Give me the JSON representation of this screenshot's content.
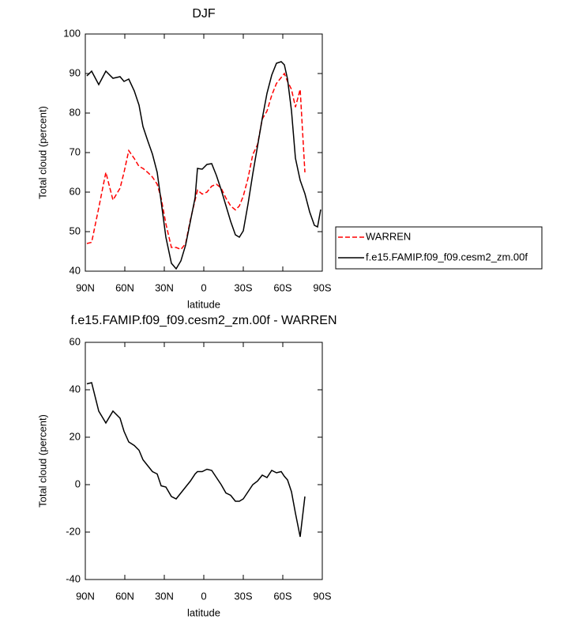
{
  "chart_data": [
    {
      "type": "line",
      "title": "DJF",
      "xlabel": "latitude",
      "ylabel": "Total cloud (percent)",
      "x": [
        88.8,
        85.2,
        79.8,
        74.4,
        69,
        63.6,
        60.6,
        57,
        52.8,
        49.2,
        46.2,
        42.6,
        39,
        35.4,
        32.4,
        28.8,
        24.6,
        21,
        17.4,
        13.8,
        10.2,
        6.6,
        4.8,
        1.2,
        -2.4,
        -6,
        -9.6,
        -13.2,
        -16.8,
        -20.4,
        -24,
        -27,
        -30,
        -33.6,
        -37.2,
        -40.8,
        -44.4,
        -48,
        -51.6,
        -55.2,
        -58.8,
        -61.2,
        -63.6,
        -66.6,
        -69.6,
        -73.2,
        -76.8,
        -80.4,
        -84,
        -86.4,
        -88.8
      ],
      "xlim": [
        90,
        -90
      ],
      "xticks": [
        {
          "value": 90,
          "label": "90N"
        },
        {
          "value": 60,
          "label": "60N"
        },
        {
          "value": 30,
          "label": "30N"
        },
        0,
        {
          "value": -30,
          "label": "30S"
        },
        {
          "value": -60,
          "label": "60S"
        },
        {
          "value": -90,
          "label": "90S"
        }
      ],
      "ylim": [
        40,
        100
      ],
      "yticks": [
        40,
        50,
        60,
        70,
        80,
        90,
        100
      ],
      "legend": "right",
      "series": [
        {
          "name": "WARREN",
          "color": "#ff0000",
          "dash": true,
          "values": [
            47.0,
            47.3,
            56,
            65,
            58,
            61,
            65,
            70.5,
            68.5,
            66.5,
            66,
            65,
            63.8,
            62,
            58.5,
            52,
            46,
            46,
            45.5,
            47,
            53,
            58,
            60.5,
            59.5,
            60,
            61.5,
            62,
            61,
            58.5,
            56.5,
            55.5,
            56.5,
            59,
            63.5,
            69.5,
            72,
            78.5,
            80.5,
            84.5,
            87.5,
            89,
            90,
            88,
            86,
            81.5,
            86,
            65,
            null,
            null,
            null,
            null
          ]
        },
        {
          "name": "f.e15.FAMIP.f09_f09.cesm2_zm.00f",
          "color": "#000000",
          "dash": false,
          "values": [
            89.4,
            90.6,
            87.2,
            90.6,
            88.8,
            89.2,
            88,
            88.6,
            85.6,
            82,
            76.6,
            73,
            69.6,
            65,
            57.6,
            48.6,
            42,
            40.6,
            42.6,
            46.6,
            52.6,
            58.6,
            66,
            65.8,
            67,
            67.2,
            64.2,
            60.6,
            56.6,
            52.6,
            49.2,
            48.6,
            50.2,
            57,
            64.6,
            71.6,
            78.6,
            85,
            89.6,
            92.6,
            93,
            92.2,
            88.6,
            80.6,
            68.6,
            63,
            59.6,
            55,
            51.6,
            51.2,
            55.6
          ]
        }
      ]
    },
    {
      "type": "line",
      "title": "f.e15.FAMIP.f09_f09.cesm2_zm.00f - WARREN",
      "xlabel": "latitude",
      "ylabel": "Total cloud (percent)",
      "x": [
        88.8,
        85.2,
        79.8,
        74.4,
        69,
        63.6,
        60.6,
        57,
        52.8,
        49.2,
        46.2,
        42.6,
        39,
        35.4,
        32.4,
        28.8,
        24.6,
        21,
        17.4,
        13.8,
        10.2,
        6.6,
        4.8,
        1.2,
        -2.4,
        -6,
        -9.6,
        -13.2,
        -16.8,
        -20.4,
        -24,
        -27,
        -30,
        -33.6,
        -37.2,
        -40.8,
        -44.4,
        -48,
        -51.6,
        -55.2,
        -58.8,
        -61.2,
        -63.6,
        -66.6,
        -69.6,
        -73.2,
        -76.8,
        -80.4,
        -84,
        -86.4,
        -88.8
      ],
      "xlim": [
        90,
        -90
      ],
      "xticks": [
        {
          "value": 90,
          "label": "90N"
        },
        {
          "value": 60,
          "label": "60N"
        },
        {
          "value": 30,
          "label": "30N"
        },
        0,
        {
          "value": -30,
          "label": "30S"
        },
        {
          "value": -60,
          "label": "60S"
        },
        {
          "value": -90,
          "label": "90S"
        }
      ],
      "ylim": [
        -40,
        60
      ],
      "yticks": [
        -40,
        -20,
        0,
        20,
        40,
        60
      ],
      "series": [
        {
          "color": "#000000",
          "dash": false,
          "values": [
            42.5,
            43,
            31,
            26,
            31,
            28,
            22.5,
            18,
            16.5,
            14.5,
            10.5,
            8,
            5.5,
            4.5,
            -0.5,
            -1,
            -5,
            -6,
            -3.5,
            -1,
            1.5,
            4.5,
            5.5,
            5.5,
            6.5,
            6,
            3,
            0,
            -3.5,
            -4.5,
            -7,
            -7,
            -6,
            -3,
            0,
            1.5,
            4,
            3,
            6,
            5,
            5.5,
            3.5,
            2,
            -3,
            -12,
            -22,
            -5,
            null,
            null,
            null,
            null
          ]
        }
      ]
    }
  ]
}
